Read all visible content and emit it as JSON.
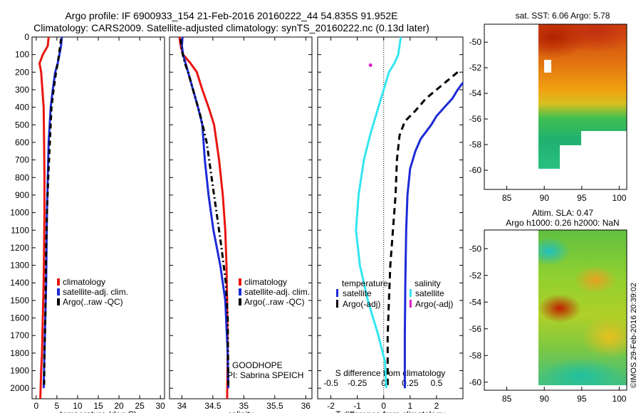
{
  "header": {
    "line1": "Argo profile: IF 6900933_154 21-Feb-2016 20160222_44 54.835S 91.952E",
    "line2": "Climatology: CARS2009. Satellite-adjusted climatology: synTS_20160222.nc (0.13d later)"
  },
  "stamp": "©IMOS 29-Feb-2016 20:39:02",
  "colors": {
    "clim": "#e8160f",
    "sat": "#1c2bd6",
    "argo": "#000000",
    "cyan": "#33e6f0",
    "magenta": "#e020c8"
  },
  "chart_data": [
    {
      "type": "line",
      "id": "temperature",
      "xlabel": "temperature (deg C)",
      "ylabel": "",
      "xlim": [
        -1,
        31
      ],
      "ylim": [
        2060,
        0
      ],
      "xticks": [
        0,
        5,
        10,
        15,
        20,
        25,
        30
      ],
      "yticks": [
        0,
        100,
        200,
        300,
        400,
        500,
        600,
        700,
        800,
        900,
        1000,
        1100,
        1200,
        1300,
        1400,
        1500,
        1600,
        1700,
        1800,
        1900,
        2000
      ],
      "legend": [
        "climatology",
        "satellite-adj. clim.",
        "Argo(..raw -QC)"
      ],
      "series": [
        {
          "name": "climatology",
          "color": "clim",
          "dash": "none",
          "x": [
            3.0,
            2.8,
            1.6,
            0.8,
            1.2,
            1.5,
            1.8,
            1.9,
            2.0,
            2.0,
            1.9,
            1.8,
            1.6,
            1.4,
            1.2,
            1.0
          ],
          "y": [
            0,
            50,
            100,
            150,
            200,
            300,
            400,
            600,
            800,
            1000,
            1200,
            1400,
            1600,
            1800,
            1900,
            2060
          ]
        },
        {
          "name": "satellite-adj. clim.",
          "color": "sat",
          "dash": "none",
          "x": [
            6.2,
            6.0,
            5.6,
            5.2,
            4.6,
            4.0,
            3.5,
            3.0,
            2.8,
            2.6,
            2.5,
            2.4,
            2.2,
            2.0,
            1.8
          ],
          "y": [
            0,
            50,
            100,
            150,
            200,
            300,
            400,
            600,
            800,
            1000,
            1200,
            1400,
            1600,
            1800,
            2000
          ]
        },
        {
          "name": "Argo(..raw -QC)",
          "color": "argo",
          "dash": "7,5",
          "x": [
            6.0,
            5.8,
            5.5,
            5.2,
            4.8,
            4.2,
            3.7,
            3.3,
            2.9,
            2.6,
            2.4,
            2.3,
            2.2,
            2.0,
            1.9
          ],
          "y": [
            10,
            50,
            100,
            150,
            200,
            300,
            400,
            600,
            800,
            1000,
            1200,
            1400,
            1600,
            1800,
            2000
          ]
        }
      ]
    },
    {
      "type": "line",
      "id": "salinity",
      "xlabel": "salinity",
      "xlim": [
        33.8,
        36.1
      ],
      "ylim": [
        2060,
        0
      ],
      "xticks": [
        34,
        34.5,
        35,
        35.5,
        36
      ],
      "legend": [
        "climatology",
        "satellite-adj. clim.",
        "Argo(..raw -QC)"
      ],
      "series": [
        {
          "name": "climatology",
          "color": "clim",
          "dash": "none",
          "x": [
            33.96,
            33.98,
            34.02,
            34.14,
            34.24,
            34.33,
            34.43,
            34.52,
            34.6,
            34.66,
            34.7,
            34.72,
            34.73,
            34.74,
            34.73
          ],
          "y": [
            0,
            50,
            100,
            150,
            200,
            300,
            400,
            500,
            700,
            900,
            1100,
            1300,
            1500,
            1800,
            2060
          ]
        },
        {
          "name": "satellite-adj. clim.",
          "color": "sat",
          "dash": "none",
          "x": [
            34.01,
            34.0,
            34.02,
            34.06,
            34.1,
            34.18,
            34.26,
            34.33,
            34.37,
            34.43,
            34.51,
            34.62,
            34.7,
            34.74,
            34.75
          ],
          "y": [
            0,
            50,
            100,
            150,
            200,
            300,
            400,
            500,
            700,
            900,
            1100,
            1300,
            1500,
            1800,
            2000
          ]
        },
        {
          "name": "Argo(..raw -QC)",
          "color": "argo",
          "dash": "8,4,2,4",
          "x": [
            33.98,
            34.0,
            34.05,
            34.1,
            34.14,
            34.22,
            34.3,
            34.4,
            34.48,
            34.56,
            34.64,
            34.71,
            34.74,
            34.75
          ],
          "y": [
            10,
            80,
            150,
            200,
            250,
            350,
            450,
            600,
            800,
            1000,
            1200,
            1400,
            1600,
            2000
          ]
        }
      ],
      "annotations": [
        "GOODHOPE",
        "PI: Sabrina SPEICH"
      ]
    },
    {
      "type": "line",
      "id": "difference",
      "xlabel": "T difference from climatology",
      "x2label": "S difference from climatology",
      "xlim": [
        -2.5,
        3.0
      ],
      "x2lim": [
        -0.625,
        0.75
      ],
      "ylim": [
        2060,
        0
      ],
      "xticks": [
        -2,
        -1,
        0,
        1,
        2
      ],
      "x2ticks": [
        -0.5,
        -0.25,
        0,
        0.25,
        0.5
      ],
      "legend": {
        "temperature": "temperature",
        "salinity": "salinity",
        "t_sat": "satellite",
        "t_argo": "Argo(-adj)",
        "s_sat": "satellite",
        "s_argo": "Argo(-adj)"
      },
      "series": [
        {
          "name": "T satellite",
          "color": "sat",
          "dash": "none",
          "x": [
            3.0,
            2.8,
            2.6,
            2.3,
            2.0,
            1.8,
            1.6,
            1.4,
            1.2,
            1.0,
            0.9,
            0.85,
            0.82,
            0.8,
            0.8
          ],
          "y": [
            260,
            300,
            350,
            400,
            450,
            500,
            540,
            580,
            650,
            750,
            900,
            1100,
            1400,
            1700,
            2000
          ]
        },
        {
          "name": "T Argo(-adj)",
          "color": "argo",
          "dash": "9,6",
          "x": [
            2.8,
            2.4,
            2.0,
            1.6,
            1.2,
            0.8,
            0.6,
            0.5,
            0.45,
            0.35,
            0.25,
            0.2,
            0.15,
            0.15
          ],
          "y": [
            200,
            250,
            300,
            350,
            420,
            480,
            560,
            700,
            900,
            1100,
            1300,
            1500,
            1700,
            2000
          ]
        },
        {
          "name": "S satellite",
          "color": "cyan",
          "dash": "none",
          "x": [
            0.65,
            0.6,
            0.55,
            0.4,
            0.2,
            0.0,
            -0.2,
            -0.5,
            -0.75,
            -0.95,
            -1.05,
            -0.9,
            -0.6,
            -0.2,
            0.05,
            0.1
          ],
          "y": [
            0,
            50,
            100,
            150,
            200,
            300,
            400,
            550,
            700,
            900,
            1100,
            1300,
            1500,
            1700,
            1850,
            2000
          ]
        }
      ],
      "points": [
        {
          "name": "S Argo(-adj)",
          "color": "magenta",
          "x": -0.5,
          "y": 160
        }
      ]
    }
  ],
  "maps": [
    {
      "id": "sst",
      "title": "sat. SST: 6.06 Argo: 5.78",
      "xlim": [
        82,
        101
      ],
      "ylim": [
        -61.5,
        -48.6
      ],
      "xticks": [
        85,
        90,
        95,
        100
      ],
      "yticks": [
        -50,
        -52,
        -54,
        -56,
        -58,
        -60
      ]
    },
    {
      "id": "sla",
      "title_line1": "Altim. SLA: 0.47",
      "title_line2": "Argo h1000: 0.26 h2000: NaN",
      "xlim": [
        82,
        101
      ],
      "ylim": [
        -60.6,
        -48.6
      ],
      "xticks": [
        85,
        90,
        95,
        100
      ],
      "yticks": [
        -50,
        -52,
        -54,
        -56,
        -58,
        -60
      ]
    }
  ]
}
